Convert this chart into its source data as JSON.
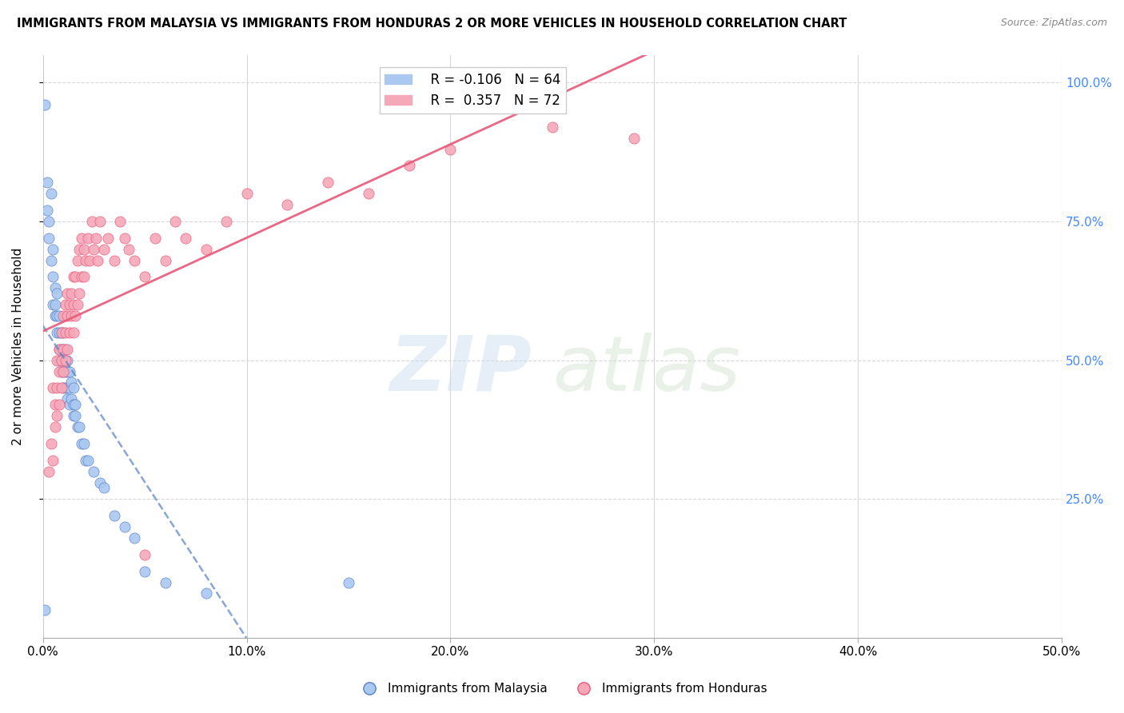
{
  "title": "IMMIGRANTS FROM MALAYSIA VS IMMIGRANTS FROM HONDURAS 2 OR MORE VEHICLES IN HOUSEHOLD CORRELATION CHART",
  "source": "Source: ZipAtlas.com",
  "ylabel": "2 or more Vehicles in Household",
  "xlim": [
    0.0,
    0.5
  ],
  "ylim": [
    0.0,
    1.05
  ],
  "xtick_labels": [
    "0.0%",
    "",
    "",
    "",
    "",
    "10.0%",
    "",
    "",
    "",
    "",
    "20.0%",
    "",
    "",
    "",
    "",
    "30.0%",
    "",
    "",
    "",
    "",
    "40.0%",
    "",
    "",
    "",
    "",
    "50.0%"
  ],
  "xtick_vals": [
    0.0,
    0.02,
    0.04,
    0.06,
    0.08,
    0.1,
    0.12,
    0.14,
    0.16,
    0.18,
    0.2,
    0.22,
    0.24,
    0.26,
    0.28,
    0.3,
    0.32,
    0.34,
    0.36,
    0.38,
    0.4,
    0.42,
    0.44,
    0.46,
    0.48,
    0.5
  ],
  "ytick_labels": [
    "25.0%",
    "50.0%",
    "75.0%",
    "100.0%"
  ],
  "ytick_vals": [
    0.25,
    0.5,
    0.75,
    1.0
  ],
  "blue_R": -0.106,
  "blue_N": 64,
  "pink_R": 0.357,
  "pink_N": 72,
  "blue_color": "#aac8f0",
  "pink_color": "#f5a8b8",
  "blue_line_color": "#5580c8",
  "pink_line_color": "#e85878",
  "blue_scatter_x": [
    0.001,
    0.002,
    0.002,
    0.003,
    0.003,
    0.004,
    0.004,
    0.005,
    0.005,
    0.005,
    0.006,
    0.006,
    0.006,
    0.007,
    0.007,
    0.007,
    0.008,
    0.008,
    0.008,
    0.008,
    0.009,
    0.009,
    0.009,
    0.009,
    0.01,
    0.01,
    0.01,
    0.01,
    0.01,
    0.011,
    0.011,
    0.011,
    0.011,
    0.012,
    0.012,
    0.012,
    0.012,
    0.013,
    0.013,
    0.013,
    0.014,
    0.014,
    0.015,
    0.015,
    0.015,
    0.016,
    0.016,
    0.017,
    0.018,
    0.019,
    0.02,
    0.021,
    0.022,
    0.025,
    0.028,
    0.03,
    0.035,
    0.04,
    0.045,
    0.05,
    0.06,
    0.08,
    0.001,
    0.15
  ],
  "blue_scatter_y": [
    0.96,
    0.82,
    0.77,
    0.75,
    0.72,
    0.8,
    0.68,
    0.7,
    0.65,
    0.6,
    0.63,
    0.6,
    0.58,
    0.62,
    0.58,
    0.55,
    0.58,
    0.55,
    0.52,
    0.5,
    0.55,
    0.52,
    0.5,
    0.48,
    0.55,
    0.52,
    0.5,
    0.48,
    0.45,
    0.52,
    0.5,
    0.48,
    0.45,
    0.5,
    0.48,
    0.45,
    0.43,
    0.48,
    0.45,
    0.42,
    0.46,
    0.43,
    0.45,
    0.42,
    0.4,
    0.42,
    0.4,
    0.38,
    0.38,
    0.35,
    0.35,
    0.32,
    0.32,
    0.3,
    0.28,
    0.27,
    0.22,
    0.2,
    0.18,
    0.12,
    0.1,
    0.08,
    0.05,
    0.1
  ],
  "pink_scatter_x": [
    0.003,
    0.004,
    0.005,
    0.005,
    0.006,
    0.006,
    0.007,
    0.007,
    0.007,
    0.008,
    0.008,
    0.008,
    0.009,
    0.009,
    0.009,
    0.01,
    0.01,
    0.01,
    0.011,
    0.011,
    0.011,
    0.012,
    0.012,
    0.012,
    0.013,
    0.013,
    0.014,
    0.014,
    0.015,
    0.015,
    0.015,
    0.016,
    0.016,
    0.017,
    0.017,
    0.018,
    0.018,
    0.019,
    0.019,
    0.02,
    0.02,
    0.021,
    0.022,
    0.023,
    0.024,
    0.025,
    0.026,
    0.027,
    0.028,
    0.03,
    0.032,
    0.035,
    0.038,
    0.04,
    0.042,
    0.045,
    0.05,
    0.055,
    0.06,
    0.065,
    0.07,
    0.08,
    0.09,
    0.1,
    0.12,
    0.14,
    0.16,
    0.18,
    0.2,
    0.25,
    0.05,
    0.29
  ],
  "pink_scatter_y": [
    0.3,
    0.35,
    0.32,
    0.45,
    0.38,
    0.42,
    0.4,
    0.45,
    0.5,
    0.42,
    0.48,
    0.52,
    0.45,
    0.5,
    0.55,
    0.48,
    0.52,
    0.58,
    0.5,
    0.55,
    0.6,
    0.52,
    0.58,
    0.62,
    0.55,
    0.6,
    0.58,
    0.62,
    0.55,
    0.6,
    0.65,
    0.58,
    0.65,
    0.6,
    0.68,
    0.62,
    0.7,
    0.65,
    0.72,
    0.65,
    0.7,
    0.68,
    0.72,
    0.68,
    0.75,
    0.7,
    0.72,
    0.68,
    0.75,
    0.7,
    0.72,
    0.68,
    0.75,
    0.72,
    0.7,
    0.68,
    0.65,
    0.72,
    0.68,
    0.75,
    0.72,
    0.7,
    0.75,
    0.8,
    0.78,
    0.82,
    0.8,
    0.85,
    0.88,
    0.92,
    0.15,
    0.9
  ]
}
